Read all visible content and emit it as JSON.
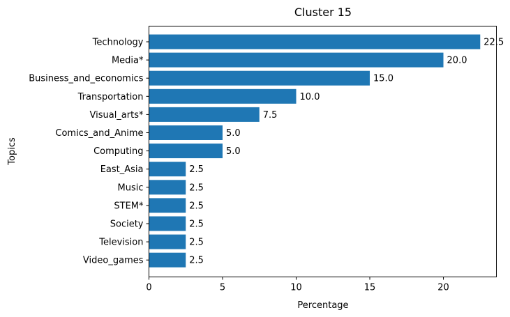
{
  "chart_data": {
    "type": "bar",
    "orientation": "horizontal",
    "title": "Cluster 15",
    "xlabel": "Percentage",
    "ylabel": "Topics",
    "categories": [
      "Technology",
      "Media*",
      "Business_and_economics",
      "Transportation",
      "Visual_arts*",
      "Comics_and_Anime",
      "Computing",
      "East_Asia",
      "Music",
      "STEM*",
      "Society",
      "Television",
      "Video_games"
    ],
    "values": [
      22.5,
      20.0,
      15.0,
      10.0,
      7.5,
      5.0,
      5.0,
      2.5,
      2.5,
      2.5,
      2.5,
      2.5,
      2.5
    ],
    "data_labels": [
      "22.5",
      "20.0",
      "15.0",
      "10.0",
      "7.5",
      "5.0",
      "5.0",
      "2.5",
      "2.5",
      "2.5",
      "2.5",
      "2.5",
      "2.5"
    ],
    "xticks": [
      0,
      5,
      10,
      15,
      20
    ],
    "xtick_labels": [
      "0",
      "5",
      "10",
      "15",
      "20"
    ],
    "xlim": [
      0,
      23.6
    ],
    "grid": false,
    "legend": "none",
    "bar_color": "#1f77b4"
  }
}
